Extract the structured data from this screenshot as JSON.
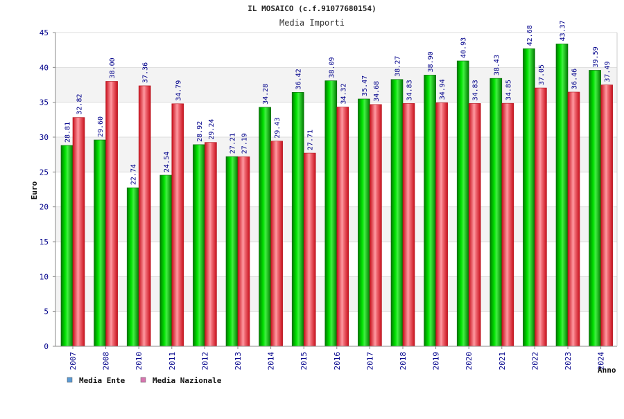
{
  "chart_data": {
    "type": "bar",
    "title": "IL MOSAICO (c.f.91077680154)",
    "subtitle": "Media Importi",
    "ylabel": "Euro",
    "xlabel": "Anno",
    "ylim": [
      0,
      45
    ],
    "yticks": [
      0,
      5,
      10,
      15,
      20,
      25,
      30,
      35,
      40,
      45
    ],
    "ytick_labels": [
      "0",
      "5",
      "10",
      "15",
      "20",
      "25",
      "30",
      "35",
      "40",
      "45"
    ],
    "grid": true,
    "categories": [
      "2007",
      "2008",
      "2010",
      "2011",
      "2012",
      "2013",
      "2014",
      "2015",
      "2016",
      "2017",
      "2018",
      "2019",
      "2020",
      "2021",
      "2022",
      "2023",
      "2024"
    ],
    "series": [
      {
        "name": "Media Ente",
        "color": "#00b000",
        "legend_color": "#5b9bd5",
        "values": [
          28.81,
          29.6,
          22.74,
          24.54,
          28.92,
          27.21,
          34.28,
          36.42,
          38.09,
          35.47,
          38.27,
          38.9,
          40.93,
          38.43,
          42.68,
          43.37,
          39.59
        ],
        "labels": [
          "28.81",
          "29.60",
          "22.74",
          "24.54",
          "28.92",
          "27.21",
          "34.28",
          "36.42",
          "38.09",
          "35.47",
          "38.27",
          "38.90",
          "40.93",
          "38.43",
          "42.68",
          "43.37",
          "39.59"
        ]
      },
      {
        "name": "Media Nazionale",
        "color": "#e8202a",
        "legend_color": "#d875b0",
        "values": [
          32.82,
          38.0,
          37.36,
          34.79,
          29.24,
          27.19,
          29.43,
          27.71,
          34.32,
          34.68,
          34.83,
          34.94,
          34.83,
          34.85,
          37.05,
          36.46,
          37.49
        ],
        "labels": [
          "32.82",
          "38.00",
          "37.36",
          "34.79",
          "29.24",
          "27.19",
          "29.43",
          "27.71",
          "34.32",
          "34.68",
          "34.83",
          "34.94",
          "34.83",
          "34.85",
          "37.05",
          "36.46",
          "37.49"
        ]
      }
    ],
    "legend_position": "bottom-left"
  }
}
